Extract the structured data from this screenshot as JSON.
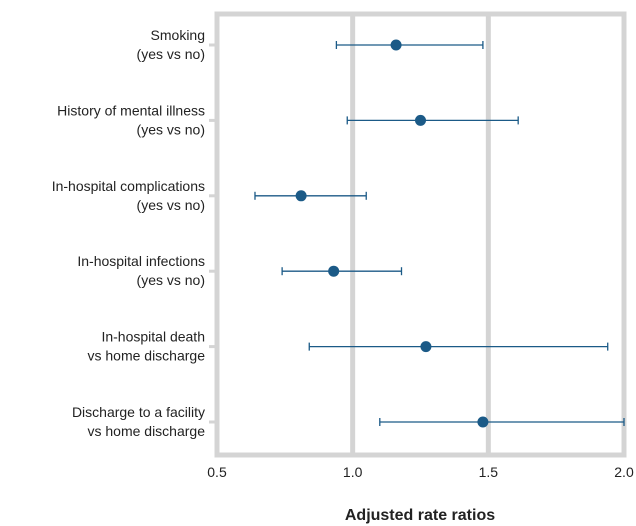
{
  "chart_data": {
    "type": "scatter",
    "subtype": "forest-plot",
    "xlabel": "Adjusted rate ratios",
    "xlim": [
      0.5,
      2.0
    ],
    "x_ticks": [
      "0.5",
      "1.0",
      "1.5",
      "2.0"
    ],
    "x_tick_values": [
      0.5,
      1.0,
      1.5,
      2.0
    ],
    "grid": "vertical",
    "categories": [
      [
        "Smoking",
        "(yes vs no)"
      ],
      [
        "History of mental illness",
        "(yes vs no)"
      ],
      [
        "In-hospital complications",
        "(yes vs no)"
      ],
      [
        "In-hospital infections",
        "(yes vs no)"
      ],
      [
        "In-hospital death",
        "vs home discharge"
      ],
      [
        "Discharge to a facility",
        "vs home discharge"
      ]
    ],
    "series": [
      {
        "estimates": [
          1.16,
          1.25,
          0.81,
          0.93,
          1.27,
          1.48
        ],
        "ci_low": [
          0.94,
          0.98,
          0.64,
          0.74,
          0.84,
          1.1
        ],
        "ci_high": [
          1.48,
          1.61,
          1.05,
          1.18,
          1.94,
          2.0
        ]
      }
    ],
    "colors": {
      "marker": "#1b5a87",
      "frame": "#d4d4d4",
      "text": "#222222"
    }
  }
}
